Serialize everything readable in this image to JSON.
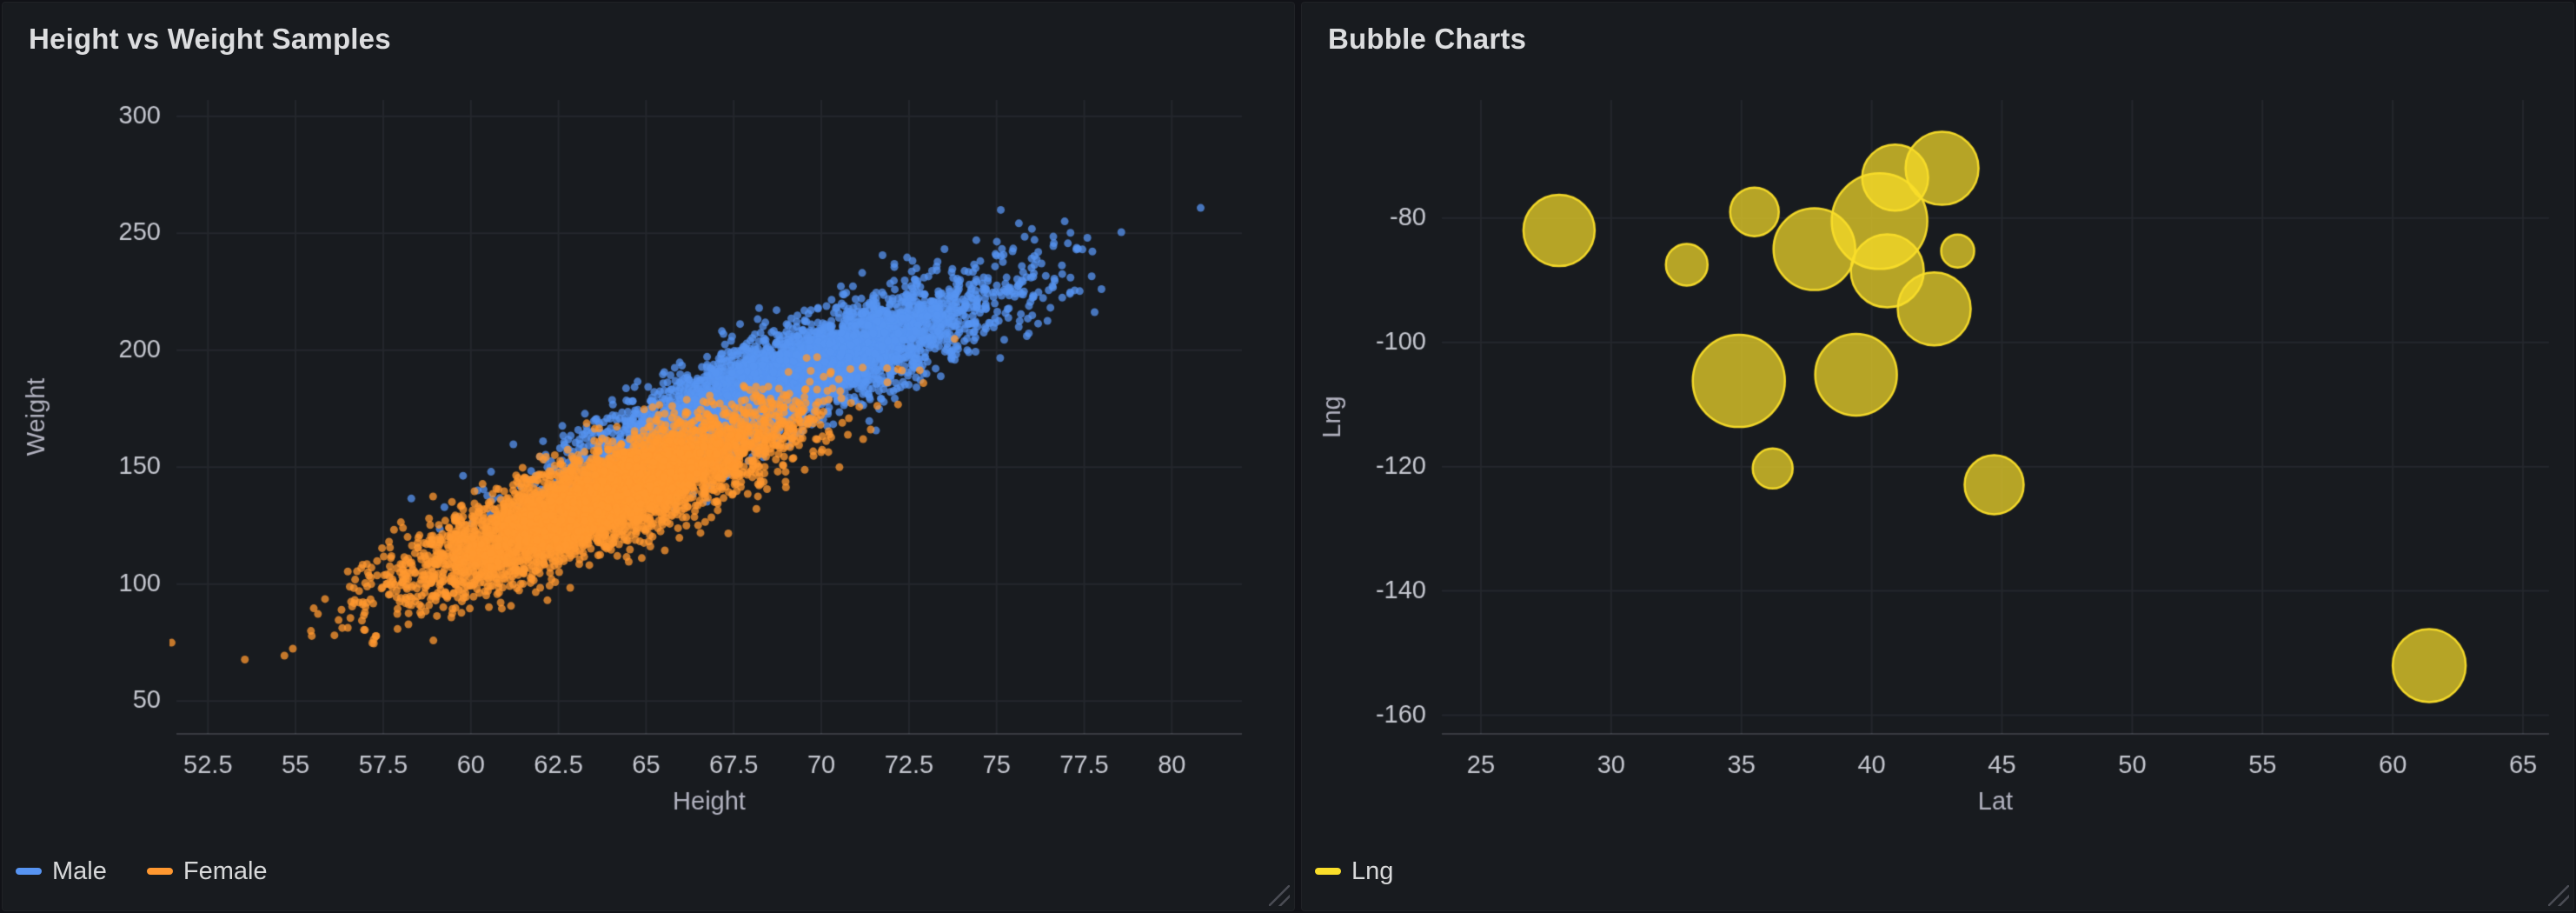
{
  "page": {
    "background": "#111217",
    "panel_background": "#181B1F"
  },
  "chart_data": [
    {
      "type": "scatter",
      "title": "Height vs Weight Samples",
      "xlabel": "Height",
      "ylabel": "Weight",
      "xlim": [
        51.6,
        82.0
      ],
      "ylim": [
        36,
        307
      ],
      "xticks": [
        52.5,
        55,
        57.5,
        60,
        62.5,
        65,
        67.5,
        70,
        72.5,
        75,
        77.5,
        80
      ],
      "yticks": [
        50,
        100,
        150,
        200,
        250,
        300
      ],
      "grid": true,
      "legend_position": "bottom-left",
      "series": [
        {
          "name": "Male",
          "color": "#5794F2",
          "point_radius_px": 4.5,
          "opacity": 0.75,
          "distribution": {
            "kind": "bivariate-normal",
            "count": 5000,
            "mean": [
              69.0,
              187.0
            ],
            "std": [
              2.86,
              19.8
            ],
            "corr": 0.87,
            "seed": 20240901
          }
        },
        {
          "name": "Female",
          "color": "#FF9830",
          "point_radius_px": 4.5,
          "opacity": 0.75,
          "distribution": {
            "kind": "bivariate-normal",
            "count": 5000,
            "mean": [
              63.7,
              135.9
            ],
            "std": [
              2.7,
              19.0
            ],
            "corr": 0.85,
            "seed": 77031
          }
        }
      ]
    },
    {
      "type": "bubble",
      "title": "Bubble Charts",
      "xlabel": "Lat",
      "ylabel": "Lng",
      "xlim": [
        23.5,
        66.0
      ],
      "ylim": [
        -163,
        -61
      ],
      "xticks": [
        25,
        30,
        35,
        40,
        45,
        50,
        55,
        60,
        65
      ],
      "yticks": [
        -80,
        -100,
        -120,
        -140,
        -160
      ],
      "grid": true,
      "legend_position": "bottom-left",
      "series": [
        {
          "name": "Lng",
          "color": "#FADE2A",
          "fill_opacity": 0.7,
          "points": [
            {
              "x": 28.0,
              "y": -82.0,
              "r": 41
            },
            {
              "x": 32.9,
              "y": -87.5,
              "r": 24
            },
            {
              "x": 35.5,
              "y": -79.0,
              "r": 28
            },
            {
              "x": 37.8,
              "y": -85.0,
              "r": 47
            },
            {
              "x": 40.3,
              "y": -80.5,
              "r": 55
            },
            {
              "x": 40.9,
              "y": -73.5,
              "r": 38
            },
            {
              "x": 42.7,
              "y": -72.0,
              "r": 42
            },
            {
              "x": 40.6,
              "y": -88.5,
              "r": 42
            },
            {
              "x": 43.3,
              "y": -85.3,
              "r": 19
            },
            {
              "x": 42.4,
              "y": -94.6,
              "r": 42
            },
            {
              "x": 34.9,
              "y": -106.2,
              "r": 53
            },
            {
              "x": 39.4,
              "y": -105.2,
              "r": 47
            },
            {
              "x": 36.2,
              "y": -120.3,
              "r": 23
            },
            {
              "x": 44.7,
              "y": -122.9,
              "r": 34
            },
            {
              "x": 61.4,
              "y": -152.0,
              "r": 42
            }
          ]
        }
      ]
    }
  ]
}
